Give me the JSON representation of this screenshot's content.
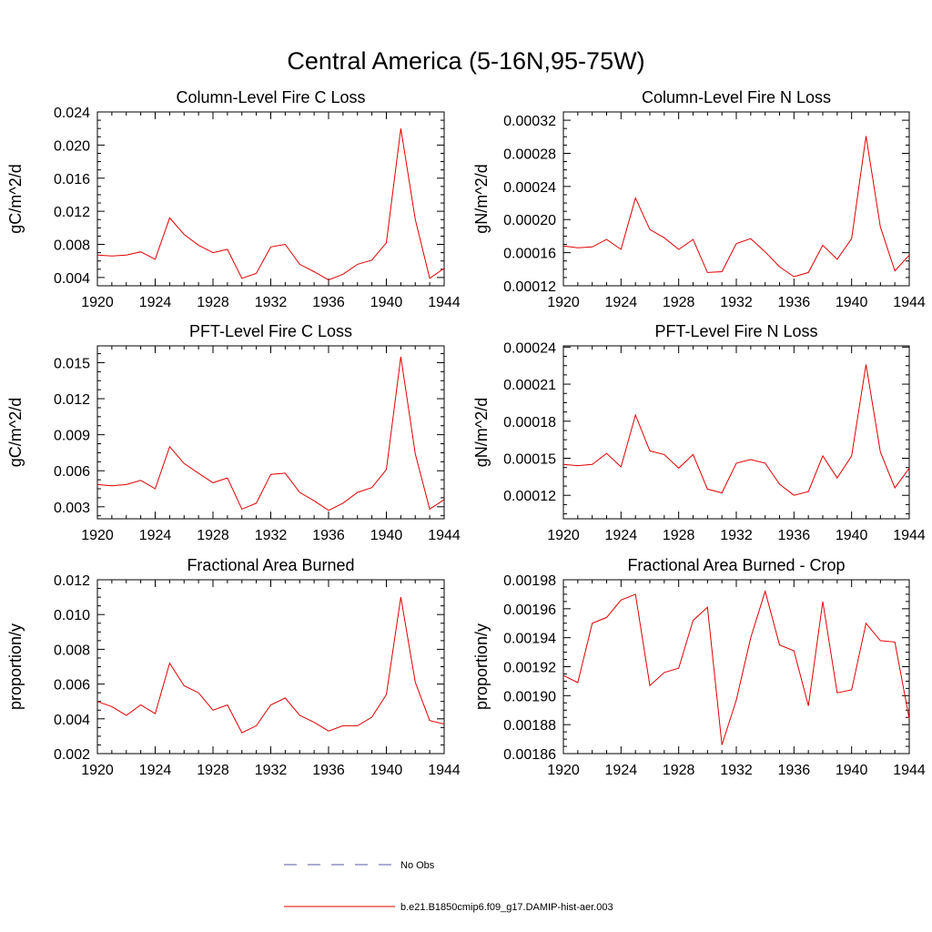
{
  "figure": {
    "title": "Central America (5-16N,95-75W)"
  },
  "legend": {
    "placement": "bottom-center",
    "entries": [
      {
        "label": "No Obs",
        "color": "#5a5aa8",
        "style": "dashed"
      },
      {
        "label": "b.e21.B1850cmip6.f09_g17.DAMIP-hist-aer.003",
        "color": "#e00000",
        "style": "solid"
      }
    ]
  },
  "chart_data": [
    {
      "type": "line",
      "title": "Column-Level Fire C Loss",
      "ylabel": "gC/m^2/d",
      "xlim": [
        1920,
        1944
      ],
      "ylim": [
        0.003,
        0.024
      ],
      "xticks": [
        1920,
        1924,
        1928,
        1932,
        1936,
        1940,
        1944
      ],
      "xtick_labels": [
        "1920",
        "1924",
        "1928",
        "1932",
        "1936",
        "1940",
        "1944"
      ],
      "yticks": [
        0.004,
        0.008,
        0.012,
        0.016,
        0.02,
        0.024
      ],
      "ytick_labels": [
        "0.004",
        "0.008",
        "0.012",
        "0.016",
        "0.020",
        "0.024"
      ],
      "x": [
        1920,
        1921,
        1922,
        1923,
        1924,
        1925,
        1926,
        1927,
        1928,
        1929,
        1930,
        1931,
        1932,
        1933,
        1934,
        1935,
        1936,
        1937,
        1938,
        1939,
        1940,
        1941,
        1942,
        1943,
        1944
      ],
      "series": [
        {
          "color": "#e00000",
          "values": [
            0.0067,
            0.0066,
            0.0067,
            0.0071,
            0.0062,
            0.0112,
            0.0092,
            0.0079,
            0.007,
            0.0074,
            0.0039,
            0.0045,
            0.0077,
            0.008,
            0.0056,
            0.0047,
            0.0037,
            0.0044,
            0.0056,
            0.0061,
            0.0082,
            0.022,
            0.011,
            0.0039,
            0.0051
          ]
        }
      ]
    },
    {
      "type": "line",
      "title": "Column-Level Fire N Loss",
      "ylabel": "gN/m^2/d",
      "xlim": [
        1920,
        1944
      ],
      "ylim": [
        0.00012,
        0.00033
      ],
      "xticks": [
        1920,
        1924,
        1928,
        1932,
        1936,
        1940,
        1944
      ],
      "xtick_labels": [
        "1920",
        "1924",
        "1928",
        "1932",
        "1936",
        "1940",
        "1944"
      ],
      "yticks": [
        0.00012,
        0.00016,
        0.0002,
        0.00024,
        0.00028,
        0.00032
      ],
      "ytick_labels": [
        "0.00012",
        "0.00016",
        "0.00020",
        "0.00024",
        "0.00028",
        "0.00032"
      ],
      "x": [
        1920,
        1921,
        1922,
        1923,
        1924,
        1925,
        1926,
        1927,
        1928,
        1929,
        1930,
        1931,
        1932,
        1933,
        1934,
        1935,
        1936,
        1937,
        1938,
        1939,
        1940,
        1941,
        1942,
        1943,
        1944
      ],
      "series": [
        {
          "color": "#e00000",
          "values": [
            0.000168,
            0.000166,
            0.000167,
            0.000176,
            0.000164,
            0.000226,
            0.000188,
            0.000178,
            0.000164,
            0.000176,
            0.000136,
            0.000137,
            0.000171,
            0.000177,
            0.000161,
            0.000143,
            0.000131,
            0.000136,
            0.000169,
            0.000152,
            0.000177,
            0.000301,
            0.000191,
            0.000138,
            0.000157
          ]
        }
      ]
    },
    {
      "type": "line",
      "title": "PFT-Level Fire C Loss",
      "ylabel": "gC/m^2/d",
      "xlim": [
        1920,
        1944
      ],
      "ylim": [
        0.002,
        0.0164
      ],
      "xticks": [
        1920,
        1924,
        1928,
        1932,
        1936,
        1940,
        1944
      ],
      "xtick_labels": [
        "1920",
        "1924",
        "1928",
        "1932",
        "1936",
        "1940",
        "1944"
      ],
      "yticks": [
        0.003,
        0.006,
        0.009,
        0.012,
        0.015
      ],
      "ytick_labels": [
        "0.003",
        "0.006",
        "0.009",
        "0.012",
        "0.015"
      ],
      "x": [
        1920,
        1921,
        1922,
        1923,
        1924,
        1925,
        1926,
        1927,
        1928,
        1929,
        1930,
        1931,
        1932,
        1933,
        1934,
        1935,
        1936,
        1937,
        1938,
        1939,
        1940,
        1941,
        1942,
        1943,
        1944
      ],
      "series": [
        {
          "color": "#e00000",
          "values": [
            0.00485,
            0.00475,
            0.00485,
            0.0052,
            0.0045,
            0.008,
            0.0066,
            0.0058,
            0.005,
            0.0054,
            0.0028,
            0.0033,
            0.0057,
            0.0058,
            0.0042,
            0.0035,
            0.0027,
            0.0033,
            0.0042,
            0.0046,
            0.0061,
            0.0155,
            0.0074,
            0.0028,
            0.0036
          ]
        }
      ]
    },
    {
      "type": "line",
      "title": "PFT-Level Fire N Loss",
      "ylabel": "gN/m^2/d",
      "xlim": [
        1920,
        1944
      ],
      "ylim": [
        0.000101,
        0.000241
      ],
      "xticks": [
        1920,
        1924,
        1928,
        1932,
        1936,
        1940,
        1944
      ],
      "xtick_labels": [
        "1920",
        "1924",
        "1928",
        "1932",
        "1936",
        "1940",
        "1944"
      ],
      "yticks": [
        0.00012,
        0.00015,
        0.00018,
        0.00021,
        0.00024
      ],
      "ytick_labels": [
        "0.00012",
        "0.00015",
        "0.00018",
        "0.00021",
        "0.00024"
      ],
      "x": [
        1920,
        1921,
        1922,
        1923,
        1924,
        1925,
        1926,
        1927,
        1928,
        1929,
        1930,
        1931,
        1932,
        1933,
        1934,
        1935,
        1936,
        1937,
        1938,
        1939,
        1940,
        1941,
        1942,
        1943,
        1944
      ],
      "series": [
        {
          "color": "#e00000",
          "values": [
            0.000145,
            0.000144,
            0.000145,
            0.000154,
            0.000143,
            0.000185,
            0.000156,
            0.000153,
            0.000142,
            0.000153,
            0.000125,
            0.000122,
            0.000146,
            0.000149,
            0.000146,
            0.000129,
            0.00012,
            0.000123,
            0.000152,
            0.000134,
            0.000152,
            0.000226,
            0.000155,
            0.000126,
            0.000142
          ]
        }
      ]
    },
    {
      "type": "line",
      "title": "Fractional Area Burned",
      "ylabel": "proportion/y",
      "xlim": [
        1920,
        1944
      ],
      "ylim": [
        0.002,
        0.012
      ],
      "xticks": [
        1920,
        1924,
        1928,
        1932,
        1936,
        1940,
        1944
      ],
      "xtick_labels": [
        "1920",
        "1924",
        "1928",
        "1932",
        "1936",
        "1940",
        "1944"
      ],
      "yticks": [
        0.002,
        0.004,
        0.006,
        0.008,
        0.01,
        0.012
      ],
      "ytick_labels": [
        "0.002",
        "0.004",
        "0.006",
        "0.008",
        "0.010",
        "0.012"
      ],
      "x": [
        1920,
        1921,
        1922,
        1923,
        1924,
        1925,
        1926,
        1927,
        1928,
        1929,
        1930,
        1931,
        1932,
        1933,
        1934,
        1935,
        1936,
        1937,
        1938,
        1939,
        1940,
        1941,
        1942,
        1943,
        1944
      ],
      "series": [
        {
          "color": "#e00000",
          "values": [
            0.005,
            0.0047,
            0.0042,
            0.0048,
            0.0043,
            0.0072,
            0.0059,
            0.0055,
            0.0045,
            0.0048,
            0.0032,
            0.0036,
            0.0048,
            0.0052,
            0.0042,
            0.0038,
            0.0033,
            0.0036,
            0.0036,
            0.0041,
            0.0054,
            0.011,
            0.0061,
            0.0039,
            0.0037
          ]
        }
      ]
    },
    {
      "type": "line",
      "title": "Fractional Area Burned - Crop",
      "ylabel": "proportion/y",
      "xlim": [
        1920,
        1944
      ],
      "ylim": [
        0.00186,
        0.00198
      ],
      "xticks": [
        1920,
        1924,
        1928,
        1932,
        1936,
        1940,
        1944
      ],
      "xtick_labels": [
        "1920",
        "1924",
        "1928",
        "1932",
        "1936",
        "1940",
        "1944"
      ],
      "yticks": [
        0.00186,
        0.00188,
        0.0019,
        0.00192,
        0.00194,
        0.00196,
        0.00198
      ],
      "ytick_labels": [
        "0.00186",
        "0.00188",
        "0.00190",
        "0.00192",
        "0.00194",
        "0.00196",
        "0.00198"
      ],
      "x": [
        1920,
        1921,
        1922,
        1923,
        1924,
        1925,
        1926,
        1927,
        1928,
        1929,
        1930,
        1931,
        1932,
        1933,
        1934,
        1935,
        1936,
        1937,
        1938,
        1939,
        1940,
        1941,
        1942,
        1943,
        1944
      ],
      "series": [
        {
          "color": "#e00000",
          "values": [
            0.001914,
            0.001909,
            0.00195,
            0.001954,
            0.001966,
            0.00197,
            0.001907,
            0.001916,
            0.001919,
            0.001952,
            0.001961,
            0.001866,
            0.001897,
            0.00194,
            0.001972,
            0.001935,
            0.001931,
            0.001893,
            0.001965,
            0.001902,
            0.001904,
            0.00195,
            0.001938,
            0.001937,
            0.001884
          ]
        }
      ]
    }
  ]
}
